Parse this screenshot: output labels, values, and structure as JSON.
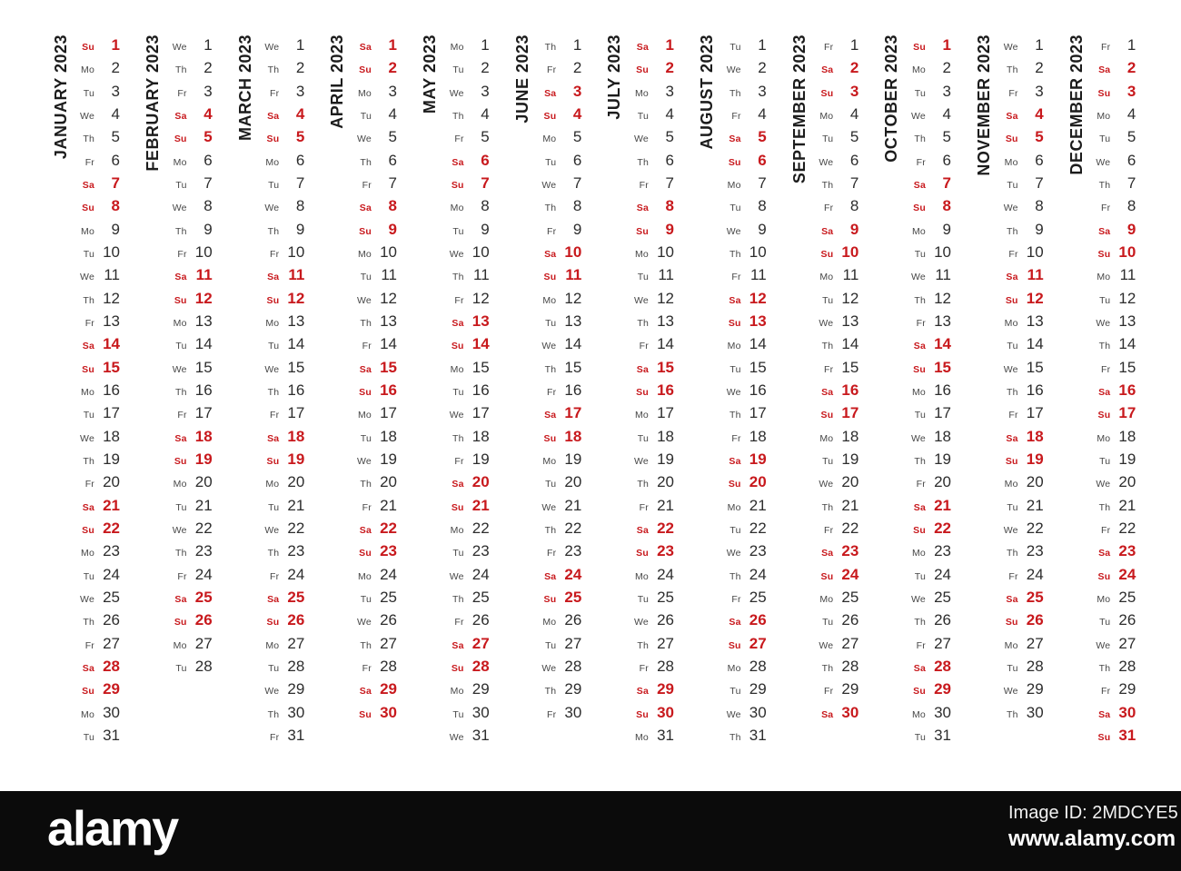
{
  "calendar": {
    "year": "2023",
    "colors": {
      "weekend": "#c8191d",
      "number": "#2d2d2d",
      "weekday": "#474747",
      "month_label": "#1c1c1c"
    },
    "weekend_days": [
      "Sa",
      "Su"
    ],
    "months": [
      {
        "name": "JANUARY 2023",
        "weekdays": [
          "Su",
          "Mo",
          "Tu",
          "We",
          "Th",
          "Fr",
          "Sa",
          "Su",
          "Mo",
          "Tu",
          "We",
          "Th",
          "Fr",
          "Sa",
          "Su",
          "Mo",
          "Tu",
          "We",
          "Th",
          "Fr",
          "Sa",
          "Su",
          "Mo",
          "Tu",
          "We",
          "Th",
          "Fr",
          "Sa",
          "Su",
          "Mo",
          "Tu"
        ]
      },
      {
        "name": "FEBRUARY 2023",
        "weekdays": [
          "We",
          "Th",
          "Fr",
          "Sa",
          "Su",
          "Mo",
          "Tu",
          "We",
          "Th",
          "Fr",
          "Sa",
          "Su",
          "Mo",
          "Tu",
          "We",
          "Th",
          "Fr",
          "Sa",
          "Su",
          "Mo",
          "Tu",
          "We",
          "Th",
          "Fr",
          "Sa",
          "Su",
          "Mo",
          "Tu"
        ]
      },
      {
        "name": "MARCH 2023",
        "weekdays": [
          "We",
          "Th",
          "Fr",
          "Sa",
          "Su",
          "Mo",
          "Tu",
          "We",
          "Th",
          "Fr",
          "Sa",
          "Su",
          "Mo",
          "Tu",
          "We",
          "Th",
          "Fr",
          "Sa",
          "Su",
          "Mo",
          "Tu",
          "We",
          "Th",
          "Fr",
          "Sa",
          "Su",
          "Mo",
          "Tu",
          "We",
          "Th",
          "Fr"
        ]
      },
      {
        "name": "APRIL 2023",
        "weekdays": [
          "Sa",
          "Su",
          "Mo",
          "Tu",
          "We",
          "Th",
          "Fr",
          "Sa",
          "Su",
          "Mo",
          "Tu",
          "We",
          "Th",
          "Fr",
          "Sa",
          "Su",
          "Mo",
          "Tu",
          "We",
          "Th",
          "Fr",
          "Sa",
          "Su",
          "Mo",
          "Tu",
          "We",
          "Th",
          "Fr",
          "Sa",
          "Su"
        ]
      },
      {
        "name": "MAY 2023",
        "weekdays": [
          "Mo",
          "Tu",
          "We",
          "Th",
          "Fr",
          "Sa",
          "Su",
          "Mo",
          "Tu",
          "We",
          "Th",
          "Fr",
          "Sa",
          "Su",
          "Mo",
          "Tu",
          "We",
          "Th",
          "Fr",
          "Sa",
          "Su",
          "Mo",
          "Tu",
          "We",
          "Th",
          "Fr",
          "Sa",
          "Su",
          "Mo",
          "Tu",
          "We"
        ]
      },
      {
        "name": "JUNE 2023",
        "weekdays": [
          "Th",
          "Fr",
          "Sa",
          "Su",
          "Mo",
          "Tu",
          "We",
          "Th",
          "Fr",
          "Sa",
          "Su",
          "Mo",
          "Tu",
          "We",
          "Th",
          "Fr",
          "Sa",
          "Su",
          "Mo",
          "Tu",
          "We",
          "Th",
          "Fr",
          "Sa",
          "Su",
          "Mo",
          "Tu",
          "We",
          "Th",
          "Fr"
        ]
      },
      {
        "name": "JULY 2023",
        "weekdays": [
          "Sa",
          "Su",
          "Mo",
          "Tu",
          "We",
          "Th",
          "Fr",
          "Sa",
          "Su",
          "Mo",
          "Tu",
          "We",
          "Th",
          "Fr",
          "Sa",
          "Su",
          "Mo",
          "Tu",
          "We",
          "Th",
          "Fr",
          "Sa",
          "Su",
          "Mo",
          "Tu",
          "We",
          "Th",
          "Fr",
          "Sa",
          "Su",
          "Mo"
        ]
      },
      {
        "name": "AUGUST 2023",
        "weekdays": [
          "Tu",
          "We",
          "Th",
          "Fr",
          "Sa",
          "Su",
          "Mo",
          "Tu",
          "We",
          "Th",
          "Fr",
          "Sa",
          "Su",
          "Mo",
          "Tu",
          "We",
          "Th",
          "Fr",
          "Sa",
          "Su",
          "Mo",
          "Tu",
          "We",
          "Th",
          "Fr",
          "Sa",
          "Su",
          "Mo",
          "Tu",
          "We",
          "Th"
        ]
      },
      {
        "name": "SEPTEMBER 2023",
        "weekdays": [
          "Fr",
          "Sa",
          "Su",
          "Mo",
          "Tu",
          "We",
          "Th",
          "Fr",
          "Sa",
          "Su",
          "Mo",
          "Tu",
          "We",
          "Th",
          "Fr",
          "Sa",
          "Su",
          "Mo",
          "Tu",
          "We",
          "Th",
          "Fr",
          "Sa",
          "Su",
          "Mo",
          "Tu",
          "We",
          "Th",
          "Fr",
          "Sa"
        ]
      },
      {
        "name": "OCTOBER 2023",
        "weekdays": [
          "Su",
          "Mo",
          "Tu",
          "We",
          "Th",
          "Fr",
          "Sa",
          "Su",
          "Mo",
          "Tu",
          "We",
          "Th",
          "Fr",
          "Sa",
          "Su",
          "Mo",
          "Tu",
          "We",
          "Th",
          "Fr",
          "Sa",
          "Su",
          "Mo",
          "Tu",
          "We",
          "Th",
          "Fr",
          "Sa",
          "Su",
          "Mo",
          "Tu"
        ]
      },
      {
        "name": "NOVEMBER 2023",
        "weekdays": [
          "We",
          "Th",
          "Fr",
          "Sa",
          "Su",
          "Mo",
          "Tu",
          "We",
          "Th",
          "Fr",
          "Sa",
          "Su",
          "Mo",
          "Tu",
          "We",
          "Th",
          "Fr",
          "Sa",
          "Su",
          "Mo",
          "Tu",
          "We",
          "Th",
          "Fr",
          "Sa",
          "Su",
          "Mo",
          "Tu",
          "We",
          "Th"
        ]
      },
      {
        "name": "DECEMBER 2023",
        "weekdays": [
          "Fr",
          "Sa",
          "Su",
          "Mo",
          "Tu",
          "We",
          "Th",
          "Fr",
          "Sa",
          "Su",
          "Mo",
          "Tu",
          "We",
          "Th",
          "Fr",
          "Sa",
          "Su",
          "Mo",
          "Tu",
          "We",
          "Th",
          "Fr",
          "Sa",
          "Su",
          "Mo",
          "Tu",
          "We",
          "Th",
          "Fr",
          "Sa",
          "Su"
        ]
      }
    ]
  },
  "watermark_bar": {
    "logo": "alamy",
    "image_id": "Image ID: 2MDCYE5",
    "url": "www.alamy.com"
  }
}
